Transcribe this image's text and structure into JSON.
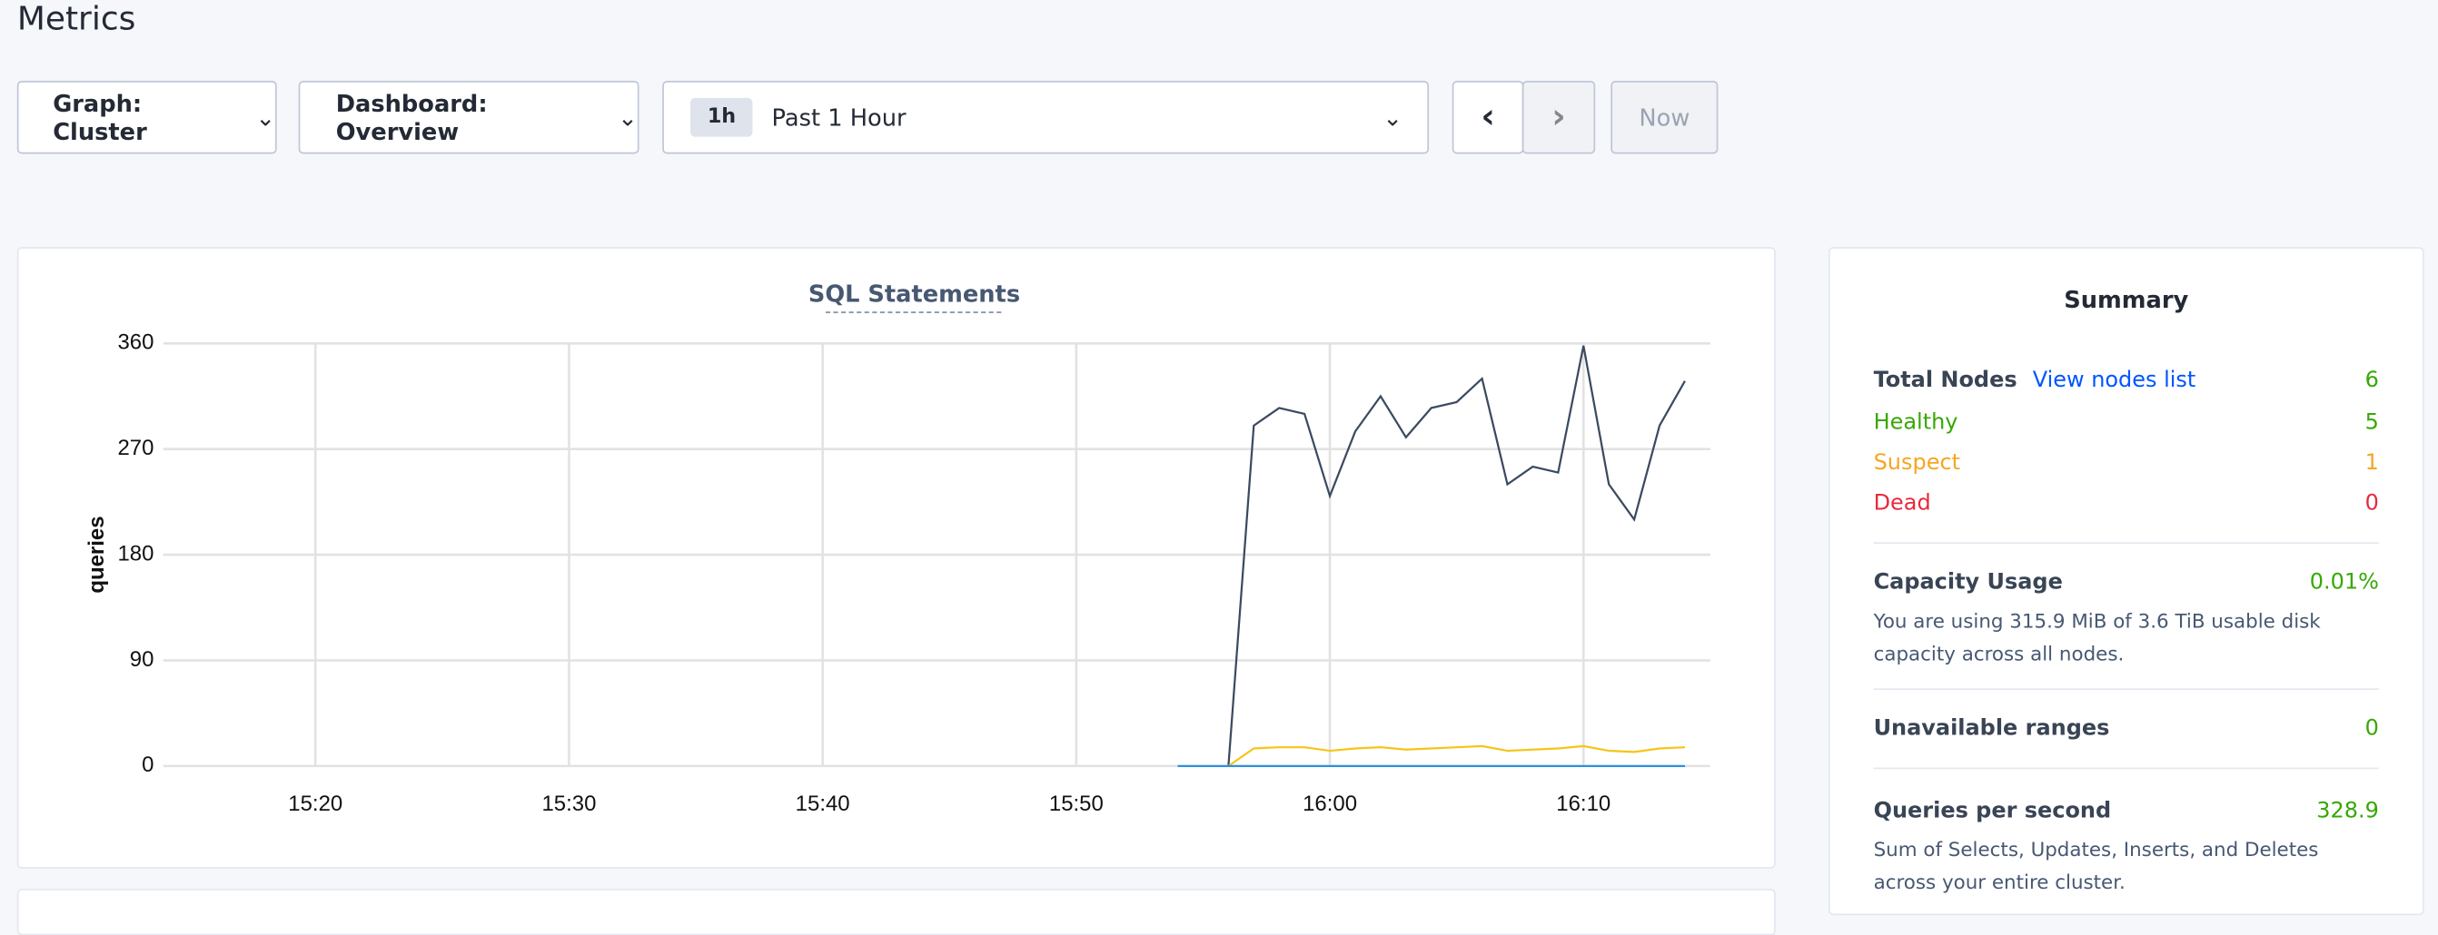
{
  "header": {
    "title": "Metrics"
  },
  "controls": {
    "graph": "Graph: Cluster",
    "dashboard": "Dashboard: Overview",
    "range_badge": "1h",
    "range": "Past 1 Hour",
    "now": "Now"
  },
  "chart_data": {
    "type": "line",
    "title": "SQL Statements",
    "y_label": "queries",
    "x": [
      "15:54",
      "15:55",
      "15:56",
      "15:57",
      "15:58",
      "15:59",
      "16:00",
      "16:01",
      "16:02",
      "16:03",
      "16:04",
      "16:05",
      "16:06",
      "16:07",
      "16:08",
      "16:09",
      "16:10",
      "16:11",
      "16:12",
      "16:13",
      "16:14"
    ],
    "xlim": [
      "15:14",
      "16:15"
    ],
    "xticks": [
      "15:20",
      "15:30",
      "15:40",
      "15:50",
      "16:00",
      "16:10"
    ],
    "ylim": [
      0,
      360
    ],
    "yticks": [
      0,
      90,
      180,
      270,
      360
    ],
    "grid": true,
    "series": [
      {
        "color": "#3a4a60",
        "values": [
          null,
          null,
          0,
          290,
          305,
          300,
          230,
          285,
          315,
          280,
          305,
          310,
          330,
          240,
          255,
          250,
          358,
          240,
          210,
          290,
          328
        ]
      },
      {
        "color": "#f5c518",
        "values": [
          null,
          null,
          0,
          15,
          16,
          16,
          13,
          15,
          16,
          14,
          15,
          16,
          17,
          13,
          14,
          15,
          17,
          13,
          12,
          15,
          16
        ]
      },
      {
        "color": "#2f8fe0",
        "values": [
          0,
          0,
          0,
          0,
          0,
          0,
          0,
          0,
          0,
          0,
          0,
          0,
          0,
          0,
          0,
          0,
          0,
          0,
          0,
          0,
          0
        ]
      }
    ]
  },
  "summary": {
    "title": "Summary",
    "total_nodes_label": "Total Nodes",
    "view_nodes": "View nodes list",
    "total_nodes": 6,
    "healthy_label": "Healthy",
    "healthy": 5,
    "suspect_label": "Suspect",
    "suspect": 1,
    "dead_label": "Dead",
    "dead": 0,
    "capacity_label": "Capacity Usage",
    "capacity": "0.01%",
    "capacity_text": "You are using 315.9 MiB of 3.6 TiB usable disk capacity across all nodes.",
    "unavailable_label": "Unavailable ranges",
    "unavailable": 0,
    "qps_label": "Queries per second",
    "qps": 328.9,
    "qps_text": "Sum of Selects, Updates, Inserts, and Deletes across your entire cluster."
  }
}
